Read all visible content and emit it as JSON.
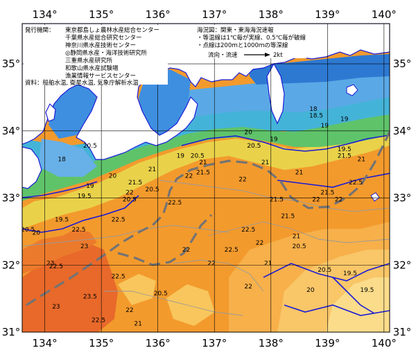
{
  "map": {
    "lon_labels": [
      "134°",
      "135°",
      "136°",
      "137°",
      "138°",
      "139°",
      "140°"
    ],
    "lat_labels": [
      "35°",
      "34°",
      "33°",
      "32°",
      "31°"
    ],
    "lon_range": [
      133.6,
      140.1
    ],
    "lat_range": [
      31.0,
      35.6
    ],
    "grid": true,
    "colors": {
      "land": "#ffffff",
      "warm": "#f39a2d",
      "warmest": "#e8692a",
      "mid": "#f7bd55",
      "cool_green": "#5fc36a",
      "cool_cyan": "#44b3d8",
      "cold_blue": "#2d79d2",
      "contour_blue": "#1a1ad6",
      "stream_gray": "#737373"
    }
  },
  "publisher": {
    "heading": "発行機関：",
    "lines": [
      "東京都島しょ農林水産総合センター",
      "千葉県水産総合研究センター",
      "神奈川県水産技術センター",
      "◎静岡県水産・海洋技術研究所",
      "三重県水産研究所",
      "和歌山県水産試験場",
      "漁業情報サービスセンター"
    ],
    "source": "資料：船舶水温, 衛星水温, 気象庁解析水温"
  },
  "legend": {
    "title": "海況図：関東・東海海況速報",
    "note1": "・等温線は1℃毎が実線、0.5℃毎が破線",
    "note2": "・点線は200ｍと1000ｍの等深線",
    "flow_label": "流向・流速",
    "flow_speed": "2kt"
  },
  "isotherm_labels": [
    {
      "text": "19",
      "lon": 138.95,
      "lat": 34.05
    },
    {
      "text": "18",
      "lon": 138.75,
      "lat": 34.3
    },
    {
      "text": "18.5",
      "lon": 138.8,
      "lat": 34.2
    },
    {
      "text": "19",
      "lon": 139.3,
      "lat": 34.15
    },
    {
      "text": "19.5",
      "lon": 139.3,
      "lat": 33.7
    },
    {
      "text": "19",
      "lon": 138.05,
      "lat": 33.85
    },
    {
      "text": "20",
      "lon": 137.6,
      "lat": 33.95
    },
    {
      "text": "20.5",
      "lon": 137.7,
      "lat": 33.75
    },
    {
      "text": "20.5",
      "lon": 136.7,
      "lat": 33.6
    },
    {
      "text": "21",
      "lon": 136.8,
      "lat": 33.5
    },
    {
      "text": "21.5",
      "lon": 136.8,
      "lat": 33.35
    },
    {
      "text": "21",
      "lon": 137.9,
      "lat": 33.5
    },
    {
      "text": "21",
      "lon": 138.5,
      "lat": 33.35
    },
    {
      "text": "21.5",
      "lon": 139.3,
      "lat": 33.6
    },
    {
      "text": "21",
      "lon": 139.6,
      "lat": 33.55
    },
    {
      "text": "22.5",
      "lon": 139.5,
      "lat": 33.2
    },
    {
      "text": "22",
      "lon": 137.5,
      "lat": 33.25
    },
    {
      "text": "22",
      "lon": 138.8,
      "lat": 32.95
    },
    {
      "text": "22",
      "lon": 139.2,
      "lat": 32.95
    },
    {
      "text": "21.5",
      "lon": 139.0,
      "lat": 33.05
    },
    {
      "text": "21.5",
      "lon": 138.1,
      "lat": 32.95
    },
    {
      "text": "21.5",
      "lon": 138.3,
      "lat": 32.7
    },
    {
      "text": "21",
      "lon": 138.45,
      "lat": 32.4
    },
    {
      "text": "20.5",
      "lon": 138.5,
      "lat": 32.25
    },
    {
      "text": "22",
      "lon": 137.8,
      "lat": 32.3
    },
    {
      "text": "21",
      "lon": 137.95,
      "lat": 32.0
    },
    {
      "text": "20.5",
      "lon": 138.95,
      "lat": 31.9
    },
    {
      "text": "20",
      "lon": 138.7,
      "lat": 31.6
    },
    {
      "text": "19.5",
      "lon": 139.4,
      "lat": 31.85
    },
    {
      "text": "19.5",
      "lon": 139.7,
      "lat": 31.6
    },
    {
      "text": "22",
      "lon": 137.6,
      "lat": 31.65
    },
    {
      "text": "22",
      "lon": 136.95,
      "lat": 32.0
    },
    {
      "text": "22",
      "lon": 136.5,
      "lat": 32.2
    },
    {
      "text": "22.5",
      "lon": 137.3,
      "lat": 32.2
    },
    {
      "text": "22.5",
      "lon": 137.6,
      "lat": 32.5
    },
    {
      "text": "22.5",
      "lon": 136.3,
      "lat": 32.9
    },
    {
      "text": "22",
      "lon": 136.55,
      "lat": 33.3
    },
    {
      "text": "21.5",
      "lon": 135.6,
      "lat": 33.2
    },
    {
      "text": "22",
      "lon": 135.5,
      "lat": 33.05
    },
    {
      "text": "22.5",
      "lon": 135.3,
      "lat": 32.65
    },
    {
      "text": "20.5",
      "lon": 135.9,
      "lat": 33.1
    },
    {
      "text": "21",
      "lon": 135.9,
      "lat": 33.4
    },
    {
      "text": "20",
      "lon": 135.2,
      "lat": 33.3
    },
    {
      "text": "20.5",
      "lon": 135.5,
      "lat": 32.95
    },
    {
      "text": "19.5",
      "lon": 134.7,
      "lat": 33.0
    },
    {
      "text": "19",
      "lon": 134.8,
      "lat": 33.15
    },
    {
      "text": "19.5",
      "lon": 134.3,
      "lat": 32.65
    },
    {
      "text": "23",
      "lon": 134.7,
      "lat": 32.25
    },
    {
      "text": "22.5",
      "lon": 134.6,
      "lat": 32.5
    },
    {
      "text": "23",
      "lon": 134.1,
      "lat": 32.0
    },
    {
      "text": "22.5",
      "lon": 134.2,
      "lat": 31.95
    },
    {
      "text": "23",
      "lon": 134.2,
      "lat": 31.35
    },
    {
      "text": "23.5",
      "lon": 134.8,
      "lat": 31.5
    },
    {
      "text": "22.5",
      "lon": 134.95,
      "lat": 31.15
    },
    {
      "text": "22.5",
      "lon": 135.3,
      "lat": 31.8
    },
    {
      "text": "22",
      "lon": 135.5,
      "lat": 31.3
    },
    {
      "text": "21",
      "lon": 135.65,
      "lat": 31.1
    },
    {
      "text": "20.5",
      "lon": 136.05,
      "lat": 31.55
    },
    {
      "text": "20",
      "lon": 133.85,
      "lat": 32.45
    },
    {
      "text": "20.5",
      "lon": 133.7,
      "lat": 32.5
    },
    {
      "text": "20.5",
      "lon": 134.8,
      "lat": 33.75
    },
    {
      "text": "18",
      "lon": 134.3,
      "lat": 33.55
    },
    {
      "text": "19",
      "lon": 136.4,
      "lat": 33.6
    }
  ]
}
